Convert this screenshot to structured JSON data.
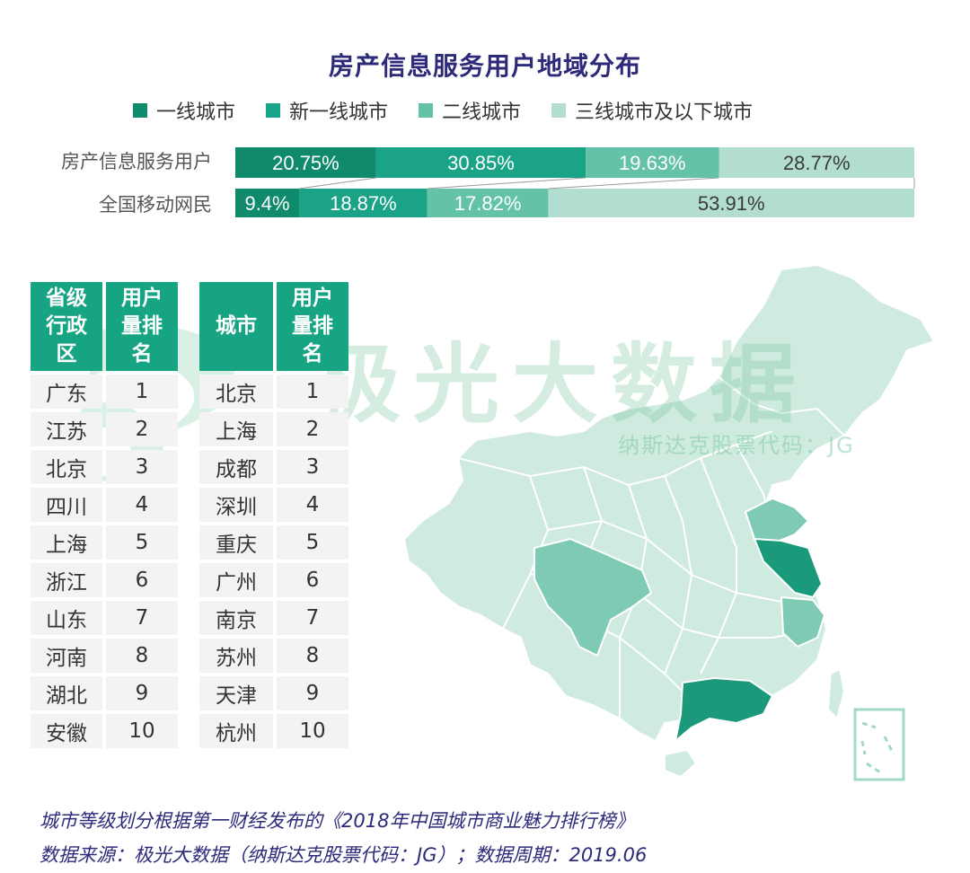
{
  "title": "房产信息服务用户地域分布",
  "legend": [
    {
      "label": "一线城市",
      "color": "#0f8a6a"
    },
    {
      "label": "新一线城市",
      "color": "#1aa386"
    },
    {
      "label": "二线城市",
      "color": "#63c2a8"
    },
    {
      "label": "三线城市及以下城市",
      "color": "#b3ddd0"
    }
  ],
  "chart_data": {
    "type": "bar",
    "orientation": "horizontal-stacked",
    "categories": [
      "房产信息服务用户",
      "全国移动网民"
    ],
    "series": [
      {
        "name": "一线城市",
        "values": [
          20.75,
          9.4
        ],
        "labels": [
          "20.75%",
          "9.4%"
        ]
      },
      {
        "name": "新一线城市",
        "values": [
          30.85,
          18.87
        ],
        "labels": [
          "30.85%",
          "18.87%"
        ]
      },
      {
        "name": "二线城市",
        "values": [
          19.63,
          17.82
        ],
        "labels": [
          "19.63%",
          "17.82%"
        ]
      },
      {
        "name": "三线城市及以下城市",
        "values": [
          28.77,
          53.91
        ],
        "labels": [
          "28.77%",
          "53.91%"
        ]
      }
    ],
    "title": "房产信息服务用户地域分布",
    "legend_position": "top"
  },
  "watermark": {
    "text": "极光大数据",
    "sub": "纳斯达克股票代码：JG"
  },
  "province_table": {
    "headers": [
      [
        "省级",
        "行政",
        "区"
      ],
      [
        "用户",
        "量排",
        "名"
      ]
    ],
    "rows": [
      [
        "广东",
        "1"
      ],
      [
        "江苏",
        "2"
      ],
      [
        "北京",
        "3"
      ],
      [
        "四川",
        "4"
      ],
      [
        "上海",
        "5"
      ],
      [
        "浙江",
        "6"
      ],
      [
        "山东",
        "7"
      ],
      [
        "河南",
        "8"
      ],
      [
        "湖北",
        "9"
      ],
      [
        "安徽",
        "10"
      ]
    ]
  },
  "city_table": {
    "headers": [
      [
        "城市"
      ],
      [
        "用户",
        "量排",
        "名"
      ]
    ],
    "rows": [
      [
        "北京",
        "1"
      ],
      [
        "上海",
        "2"
      ],
      [
        "成都",
        "3"
      ],
      [
        "深圳",
        "4"
      ],
      [
        "重庆",
        "5"
      ],
      [
        "广州",
        "6"
      ],
      [
        "南京",
        "7"
      ],
      [
        "苏州",
        "8"
      ],
      [
        "天津",
        "9"
      ],
      [
        "杭州",
        "10"
      ]
    ]
  },
  "map_colors": {
    "base": "#cfeadf",
    "border": "#ffffff",
    "tier1": "#1a9a7a",
    "tier2": "#7fcab4",
    "tier3": "#a3d8c6"
  },
  "footnotes": [
    "城市等级划分根据第一财经发布的《2018年中国城市商业魅力排行榜》",
    "数据来源：极光大数据（纳斯达克股票代码：JG）；数据周期：2019.06"
  ]
}
